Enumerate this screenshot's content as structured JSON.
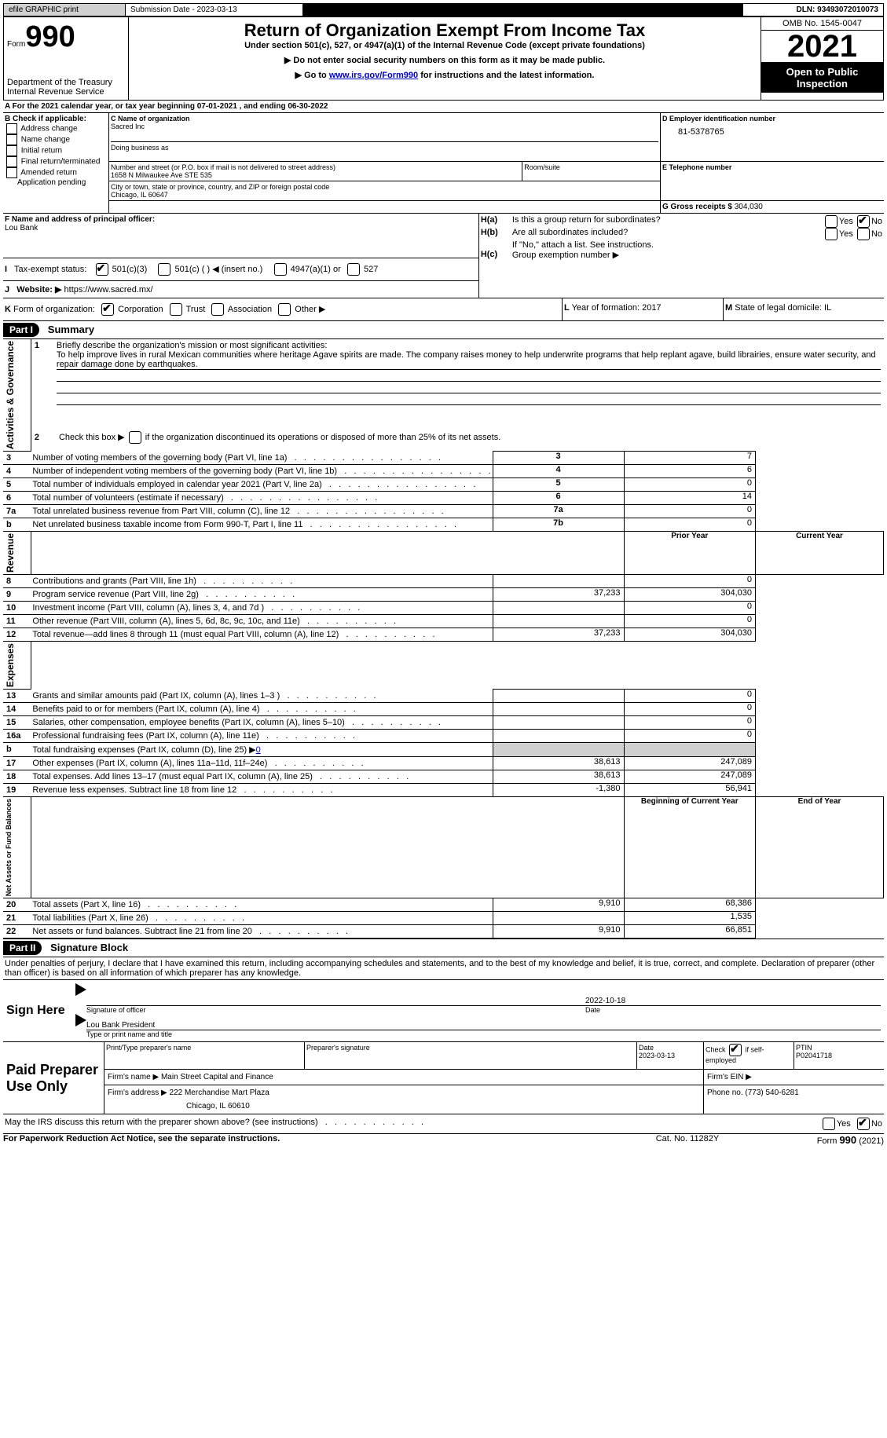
{
  "topbar": {
    "efile_label": "efile GRAPHIC print",
    "submission_label": "Submission Date - 2023-03-13",
    "dln_label": "DLN: 93493072010073"
  },
  "header": {
    "form_word": "Form",
    "form_num": "990",
    "title": "Return of Organization Exempt From Income Tax",
    "subtitle": "Under section 501(c), 527, or 4947(a)(1) of the Internal Revenue Code (except private foundations)",
    "note1": "▶ Do not enter social security numbers on this form as it may be made public.",
    "note2_pre": "▶ Go to ",
    "note2_link": "www.irs.gov/Form990",
    "note2_post": " for instructions and the latest information.",
    "dept1": "Department of the Treasury",
    "dept2": "Internal Revenue Service",
    "omb_label": "OMB No. 1545-0047",
    "year": "2021",
    "open_label": "Open to Public Inspection"
  },
  "lineA": {
    "pre": "A For the 2021 calendar year, or tax year beginning ",
    "begin": "07-01-2021",
    "mid": " , and ending ",
    "end": "06-30-2022"
  },
  "boxB": {
    "label": "B Check if applicable:",
    "opts": [
      "Address change",
      "Name change",
      "Initial return",
      "Final return/terminated",
      "Amended return",
      "Application pending"
    ]
  },
  "boxC": {
    "name_label": "C Name of organization",
    "name": "Sacred Inc",
    "dba_label": "Doing business as",
    "addr_label": "Number and street (or P.O. box if mail is not delivered to street address)",
    "room_label": "Room/suite",
    "addr": "1658 N Milwaukee Ave STE 535",
    "city_label": "City or town, state or province, country, and ZIP or foreign postal code",
    "city": "Chicago, IL  60647"
  },
  "boxD": {
    "label": "D Employer identification number",
    "val": "81-5378765"
  },
  "boxE": {
    "label": "E Telephone number"
  },
  "boxG": {
    "label": "G Gross receipts $ ",
    "val": "304,030"
  },
  "boxF": {
    "label": "F Name and address of principal officer:",
    "name": "Lou Bank"
  },
  "boxH": {
    "ha_label": "H(a)",
    "ha_text": "Is this a group return for subordinates?",
    "hb_label": "H(b)",
    "hb_text": "Are all subordinates included?",
    "hb_note": "If \"No,\" attach a list. See instructions.",
    "hc_label": "H(c)",
    "hc_text": "Group exemption number ▶",
    "yes": "Yes",
    "no": "No"
  },
  "boxI": {
    "label": "I",
    "text": "Tax-exempt status:",
    "opt1": "501(c)(3)",
    "opt2_pre": "501(c) ( ) ",
    "opt2_post": "◀ (insert no.)",
    "opt3": "4947(a)(1) or",
    "opt4": "527"
  },
  "boxJ": {
    "label": "J",
    "text": "Website: ▶ ",
    "val": "https://www.sacred.mx/"
  },
  "boxK": {
    "label": "K",
    "text": "Form of organization:",
    "opts": [
      "Corporation",
      "Trust",
      "Association",
      "Other ▶"
    ]
  },
  "boxL": {
    "label": "L",
    "text": "Year of formation: ",
    "val": "2017"
  },
  "boxM": {
    "label": "M",
    "text": "State of legal domicile: ",
    "val": "IL"
  },
  "part1": {
    "hdr": "Part I",
    "title": "Summary",
    "side_act": "Activities & Governance",
    "side_rev": "Revenue",
    "side_exp": "Expenses",
    "side_net": "Net Assets or Fund Balances",
    "q1_label": "1",
    "q1_text": "Briefly describe the organization's mission or most significant activities:",
    "q1_val": "To help improve lives in rural Mexican communities where heritage Agave spirits are made. The company raises money to help underwrite programs that help replant agave, build librairies, ensure water security, and repair damage done by earthquakes.",
    "q2_label": "2",
    "q2_text": "Check this box ▶",
    "q2_post": "if the organization discontinued its operations or disposed of more than 25% of its net assets.",
    "prior_hdr": "Prior Year",
    "curr_hdr": "Current Year",
    "begin_hdr": "Beginning of Current Year",
    "end_hdr": "End of Year",
    "rows_gov": [
      {
        "n": "3",
        "t": "Number of voting members of the governing body (Part VI, line 1a)",
        "box": "3",
        "v": "7"
      },
      {
        "n": "4",
        "t": "Number of independent voting members of the governing body (Part VI, line 1b)",
        "box": "4",
        "v": "6"
      },
      {
        "n": "5",
        "t": "Total number of individuals employed in calendar year 2021 (Part V, line 2a)",
        "box": "5",
        "v": "0"
      },
      {
        "n": "6",
        "t": "Total number of volunteers (estimate if necessary)",
        "box": "6",
        "v": "14"
      },
      {
        "n": "7a",
        "t": "Total unrelated business revenue from Part VIII, column (C), line 12",
        "box": "7a",
        "v": "0"
      },
      {
        "n": "b",
        "t": "Net unrelated business taxable income from Form 990-T, Part I, line 11",
        "box": "7b",
        "v": "0"
      }
    ],
    "rows_rev": [
      {
        "n": "8",
        "t": "Contributions and grants (Part VIII, line 1h)",
        "p": "",
        "c": "0"
      },
      {
        "n": "9",
        "t": "Program service revenue (Part VIII, line 2g)",
        "p": "37,233",
        "c": "304,030"
      },
      {
        "n": "10",
        "t": "Investment income (Part VIII, column (A), lines 3, 4, and 7d )",
        "p": "",
        "c": "0"
      },
      {
        "n": "11",
        "t": "Other revenue (Part VIII, column (A), lines 5, 6d, 8c, 9c, 10c, and 11e)",
        "p": "",
        "c": "0"
      },
      {
        "n": "12",
        "t": "Total revenue—add lines 8 through 11 (must equal Part VIII, column (A), line 12)",
        "p": "37,233",
        "c": "304,030"
      }
    ],
    "rows_exp": [
      {
        "n": "13",
        "t": "Grants and similar amounts paid (Part IX, column (A), lines 1–3 )",
        "p": "",
        "c": "0"
      },
      {
        "n": "14",
        "t": "Benefits paid to or for members (Part IX, column (A), line 4)",
        "p": "",
        "c": "0"
      },
      {
        "n": "15",
        "t": "Salaries, other compensation, employee benefits (Part IX, column (A), lines 5–10)",
        "p": "",
        "c": "0"
      },
      {
        "n": "16a",
        "t": "Professional fundraising fees (Part IX, column (A), line 11e)",
        "p": "",
        "c": "0"
      },
      {
        "n": "b",
        "t": "Total fundraising expenses (Part IX, column (D), line 25) ▶",
        "link": "0",
        "p": "GRAY",
        "c": "GRAY"
      },
      {
        "n": "17",
        "t": "Other expenses (Part IX, column (A), lines 11a–11d, 11f–24e)",
        "p": "38,613",
        "c": "247,089"
      },
      {
        "n": "18",
        "t": "Total expenses. Add lines 13–17 (must equal Part IX, column (A), line 25)",
        "p": "38,613",
        "c": "247,089"
      },
      {
        "n": "19",
        "t": "Revenue less expenses. Subtract line 18 from line 12",
        "p": "-1,380",
        "c": "56,941"
      }
    ],
    "rows_net": [
      {
        "n": "20",
        "t": "Total assets (Part X, line 16)",
        "p": "9,910",
        "c": "68,386"
      },
      {
        "n": "21",
        "t": "Total liabilities (Part X, line 26)",
        "p": "",
        "c": "1,535"
      },
      {
        "n": "22",
        "t": "Net assets or fund balances. Subtract line 21 from line 20",
        "p": "9,910",
        "c": "66,851"
      }
    ]
  },
  "part2": {
    "hdr": "Part II",
    "title": "Signature Block",
    "decl": "Under penalties of perjury, I declare that I have examined this return, including accompanying schedules and statements, and to the best of my knowledge and belief, it is true, correct, and complete. Declaration of preparer (other than officer) is based on all information of which preparer has any knowledge.",
    "sign_here": "Sign Here",
    "sig_officer": "Signature of officer",
    "sig_date": "Date",
    "sig_date_val": "2022-10-18",
    "sig_name": "Lou Bank  President",
    "sig_type": "Type or print name and title",
    "paid": "Paid Preparer Use Only",
    "prep_name_label": "Print/Type preparer's name",
    "prep_sig_label": "Preparer's signature",
    "prep_date_label": "Date",
    "prep_date": "2023-03-13",
    "prep_check_label": "Check",
    "prep_check_post": "if self-employed",
    "ptin_label": "PTIN",
    "ptin": "P02041718",
    "firm_name_label": "Firm's name    ▶ ",
    "firm_name": "Main Street Capital and Finance",
    "firm_ein_label": "Firm's EIN ▶",
    "firm_addr_label": "Firm's address ▶ ",
    "firm_addr1": "222 Merchandise Mart Plaza",
    "firm_addr2": "Chicago, IL  60610",
    "phone_label": "Phone no. ",
    "phone": "(773) 540-6281",
    "discuss": "May the IRS discuss this return with the preparer shown above? (see instructions)",
    "yes": "Yes",
    "no": "No"
  },
  "footer": {
    "left": "For Paperwork Reduction Act Notice, see the separate instructions.",
    "mid": "Cat. No. 11282Y",
    "right_pre": "Form ",
    "right_form": "990",
    "right_post": " (2021)"
  }
}
